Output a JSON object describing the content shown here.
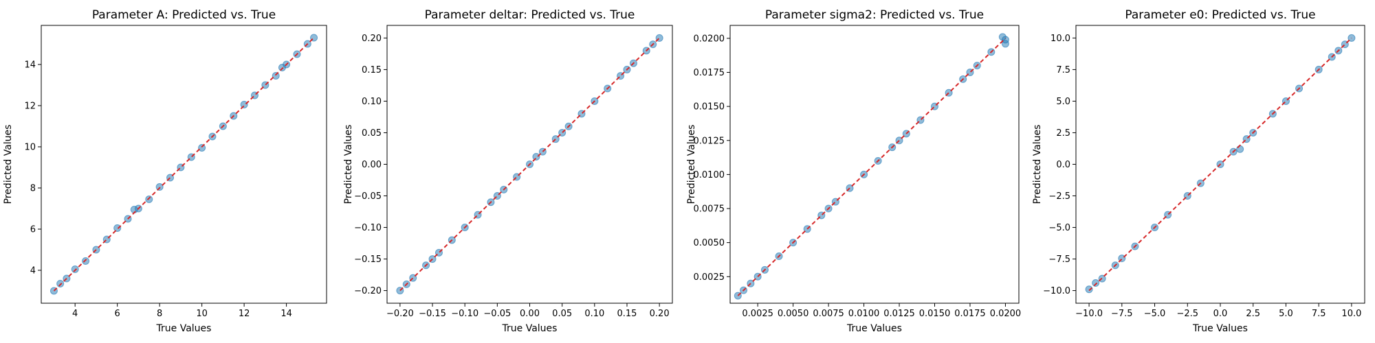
{
  "chart_data": [
    {
      "type": "scatter",
      "title": "Parameter A: Predicted vs. True",
      "xlabel": "True Values",
      "ylabel": "Predicted Values",
      "xlim": [
        2.4,
        15.9
      ],
      "ylim": [
        2.4,
        15.9
      ],
      "xticks": [
        {
          "value": 4,
          "label": "4"
        },
        {
          "value": 6,
          "label": "6"
        },
        {
          "value": 8,
          "label": "8"
        },
        {
          "value": 10,
          "label": "10"
        },
        {
          "value": 12,
          "label": "12"
        },
        {
          "value": 14,
          "label": "14"
        }
      ],
      "yticks": [
        {
          "value": 4,
          "label": "4"
        },
        {
          "value": 6,
          "label": "6"
        },
        {
          "value": 8,
          "label": "8"
        },
        {
          "value": 10,
          "label": "10"
        },
        {
          "value": 12,
          "label": "12"
        },
        {
          "value": 14,
          "label": "14"
        }
      ],
      "grid": false,
      "scatter": {
        "color": "#1f77b4",
        "x": [
          3.0,
          3.3,
          3.6,
          4.0,
          4.5,
          5.0,
          5.5,
          6.0,
          6.5,
          6.8,
          7.0,
          7.5,
          8.0,
          8.5,
          9.0,
          9.5,
          10.0,
          10.5,
          11.0,
          11.5,
          12.0,
          12.5,
          13.0,
          13.5,
          13.8,
          14.0,
          14.5,
          15.0,
          15.3
        ],
        "y": [
          3.0,
          3.35,
          3.6,
          4.05,
          4.45,
          5.0,
          5.5,
          6.05,
          6.5,
          6.95,
          7.0,
          7.45,
          8.05,
          8.5,
          9.0,
          9.5,
          9.95,
          10.5,
          11.0,
          11.5,
          12.05,
          12.5,
          13.0,
          13.45,
          13.85,
          14.0,
          14.5,
          15.0,
          15.3
        ]
      },
      "reference_line": {
        "color": "#d62728",
        "style": "dashed",
        "x": [
          3.0,
          15.3
        ],
        "y": [
          3.0,
          15.3
        ]
      }
    },
    {
      "type": "scatter",
      "title": "Parameter deltar: Predicted vs. True",
      "xlabel": "True Values",
      "ylabel": "Predicted Values",
      "xlim": [
        -0.22,
        0.22
      ],
      "ylim": [
        -0.22,
        0.22
      ],
      "xticks": [
        {
          "value": -0.2,
          "label": "−0.20"
        },
        {
          "value": -0.15,
          "label": "−0.15"
        },
        {
          "value": -0.1,
          "label": "−0.10"
        },
        {
          "value": -0.05,
          "label": "−0.05"
        },
        {
          "value": 0.0,
          "label": "0.00"
        },
        {
          "value": 0.05,
          "label": "0.05"
        },
        {
          "value": 0.1,
          "label": "0.10"
        },
        {
          "value": 0.15,
          "label": "0.15"
        },
        {
          "value": 0.2,
          "label": "0.20"
        }
      ],
      "yticks": [
        {
          "value": -0.2,
          "label": "−0.20"
        },
        {
          "value": -0.15,
          "label": "−0.15"
        },
        {
          "value": -0.1,
          "label": "−0.10"
        },
        {
          "value": -0.05,
          "label": "−0.05"
        },
        {
          "value": 0.0,
          "label": "0.00"
        },
        {
          "value": 0.05,
          "label": "0.05"
        },
        {
          "value": 0.1,
          "label": "0.10"
        },
        {
          "value": 0.15,
          "label": "0.15"
        },
        {
          "value": 0.2,
          "label": "0.20"
        }
      ],
      "grid": false,
      "scatter": {
        "color": "#1f77b4",
        "x": [
          -0.2,
          -0.19,
          -0.18,
          -0.16,
          -0.15,
          -0.14,
          -0.12,
          -0.1,
          -0.08,
          -0.06,
          -0.05,
          -0.04,
          -0.02,
          0.0,
          0.01,
          0.02,
          0.04,
          0.05,
          0.06,
          0.08,
          0.1,
          0.12,
          0.14,
          0.15,
          0.16,
          0.18,
          0.19,
          0.2
        ],
        "y": [
          -0.2,
          -0.19,
          -0.18,
          -0.16,
          -0.15,
          -0.14,
          -0.12,
          -0.1,
          -0.08,
          -0.06,
          -0.05,
          -0.04,
          -0.02,
          0.0,
          0.012,
          0.02,
          0.04,
          0.05,
          0.06,
          0.08,
          0.1,
          0.12,
          0.14,
          0.15,
          0.16,
          0.18,
          0.19,
          0.2
        ]
      },
      "reference_line": {
        "color": "#d62728",
        "style": "dashed",
        "x": [
          -0.2,
          0.2
        ],
        "y": [
          -0.2,
          0.2
        ]
      }
    },
    {
      "type": "scatter",
      "title": "Parameter sigma2: Predicted vs. True",
      "xlabel": "True Values",
      "ylabel": "Predicted Values",
      "xlim": [
        0.00055,
        0.02095
      ],
      "ylim": [
        0.00055,
        0.02095
      ],
      "xticks": [
        {
          "value": 0.0025,
          "label": "0.0025"
        },
        {
          "value": 0.005,
          "label": "0.0050"
        },
        {
          "value": 0.0075,
          "label": "0.0075"
        },
        {
          "value": 0.01,
          "label": "0.0100"
        },
        {
          "value": 0.0125,
          "label": "0.0125"
        },
        {
          "value": 0.015,
          "label": "0.0150"
        },
        {
          "value": 0.0175,
          "label": "0.0175"
        },
        {
          "value": 0.02,
          "label": "0.0200"
        }
      ],
      "yticks": [
        {
          "value": 0.0025,
          "label": "0.0025"
        },
        {
          "value": 0.005,
          "label": "0.0050"
        },
        {
          "value": 0.0075,
          "label": "0.0075"
        },
        {
          "value": 0.01,
          "label": "0.0100"
        },
        {
          "value": 0.0125,
          "label": "0.0125"
        },
        {
          "value": 0.015,
          "label": "0.0150"
        },
        {
          "value": 0.0175,
          "label": "0.0175"
        },
        {
          "value": 0.02,
          "label": "0.0200"
        }
      ],
      "grid": false,
      "scatter": {
        "color": "#1f77b4",
        "x": [
          0.0011,
          0.0015,
          0.002,
          0.0025,
          0.003,
          0.004,
          0.005,
          0.006,
          0.007,
          0.0075,
          0.008,
          0.009,
          0.01,
          0.011,
          0.012,
          0.0125,
          0.013,
          0.014,
          0.015,
          0.016,
          0.017,
          0.0175,
          0.018,
          0.019,
          0.0198,
          0.02,
          0.02
        ],
        "y": [
          0.0011,
          0.0015,
          0.002,
          0.0025,
          0.003,
          0.004,
          0.005,
          0.006,
          0.007,
          0.0075,
          0.008,
          0.009,
          0.01,
          0.011,
          0.012,
          0.0125,
          0.013,
          0.014,
          0.015,
          0.016,
          0.017,
          0.0175,
          0.018,
          0.019,
          0.0201,
          0.0196,
          0.0199
        ]
      },
      "reference_line": {
        "color": "#d62728",
        "style": "dashed",
        "x": [
          0.0011,
          0.02
        ],
        "y": [
          0.0011,
          0.02
        ]
      }
    },
    {
      "type": "scatter",
      "title": "Parameter e0: Predicted vs. True",
      "xlabel": "True Values",
      "ylabel": "Predicted Values",
      "xlim": [
        -11.0,
        11.0
      ],
      "ylim": [
        -11.0,
        11.0
      ],
      "xticks": [
        {
          "value": -10,
          "label": "−10.0"
        },
        {
          "value": -7.5,
          "label": "−7.5"
        },
        {
          "value": -5,
          "label": "−5.0"
        },
        {
          "value": -2.5,
          "label": "−2.5"
        },
        {
          "value": 0,
          "label": "0.0"
        },
        {
          "value": 2.5,
          "label": "2.5"
        },
        {
          "value": 5,
          "label": "5.0"
        },
        {
          "value": 7.5,
          "label": "7.5"
        },
        {
          "value": 10,
          "label": "10.0"
        }
      ],
      "yticks": [
        {
          "value": -10,
          "label": "−10.0"
        },
        {
          "value": -7.5,
          "label": "−7.5"
        },
        {
          "value": -5,
          "label": "−5.0"
        },
        {
          "value": -2.5,
          "label": "−2.5"
        },
        {
          "value": 0,
          "label": "0.0"
        },
        {
          "value": 2.5,
          "label": "2.5"
        },
        {
          "value": 5,
          "label": "5.0"
        },
        {
          "value": 7.5,
          "label": "7.5"
        },
        {
          "value": 10,
          "label": "10.0"
        }
      ],
      "grid": false,
      "scatter": {
        "color": "#1f77b4",
        "x": [
          -10.0,
          -9.5,
          -9.0,
          -8.0,
          -7.5,
          -6.5,
          -5.0,
          -4.0,
          -2.5,
          -1.5,
          0.0,
          1.0,
          1.5,
          2.0,
          2.5,
          4.0,
          5.0,
          6.0,
          7.5,
          8.5,
          9.0,
          9.5,
          10.0
        ],
        "y": [
          -9.9,
          -9.4,
          -9.05,
          -8.0,
          -7.45,
          -6.5,
          -5.0,
          -4.0,
          -2.5,
          -1.5,
          0.0,
          1.0,
          1.2,
          2.0,
          2.5,
          4.0,
          5.0,
          6.0,
          7.5,
          8.5,
          9.0,
          9.5,
          10.0
        ]
      },
      "reference_line": {
        "color": "#d62728",
        "style": "dashed",
        "x": [
          -10.0,
          10.0
        ],
        "y": [
          -10.0,
          10.0
        ]
      }
    }
  ]
}
